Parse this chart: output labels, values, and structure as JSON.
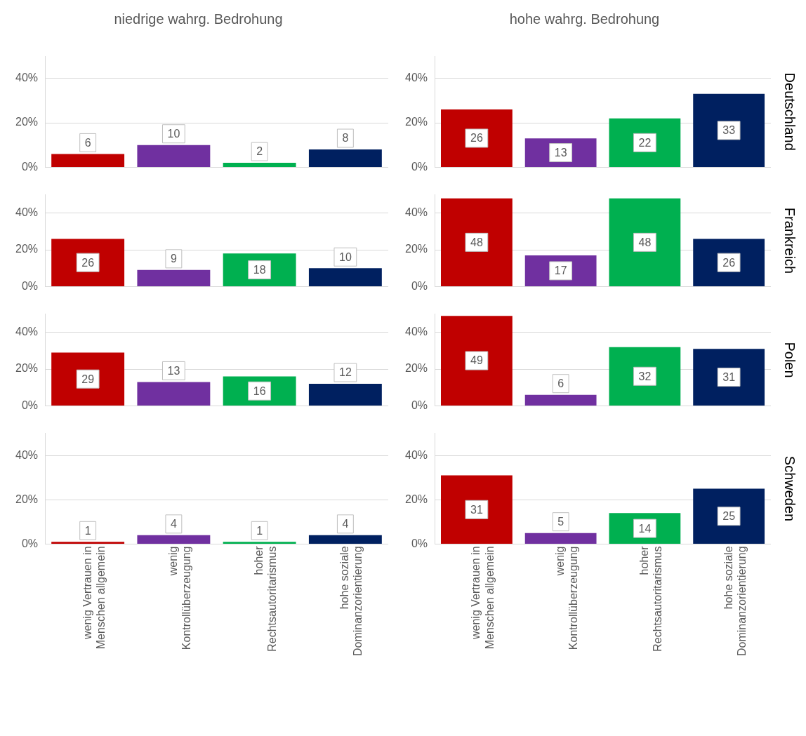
{
  "chart_data": [
    {
      "type": "bar",
      "title": "niedrige wahrg. Bedrohung",
      "categories": [
        null,
        null,
        null,
        null
      ],
      "values": [
        6,
        10,
        2,
        8
      ],
      "colors": [
        "#c00000",
        "#7030a0",
        "#00b050",
        "#002060"
      ],
      "ylim": [
        0,
        50
      ],
      "yticks": [
        {
          "value": 0,
          "label": "0%"
        },
        {
          "value": 20,
          "label": "20%"
        },
        {
          "value": 40,
          "label": "40%"
        }
      ],
      "grid": "y",
      "data_labels": true,
      "tick_labels": "y"
    },
    {
      "type": "bar",
      "title": "hohe wahrg. Bedrohung",
      "annotations": [
        "Deutschland"
      ],
      "categories": [
        null,
        null,
        null,
        null
      ],
      "values": [
        26,
        13,
        22,
        33
      ],
      "colors": [
        "#c00000",
        "#7030a0",
        "#00b050",
        "#002060"
      ],
      "ylim": [
        0,
        50
      ],
      "yticks": [
        {
          "value": 0,
          "label": "0%"
        },
        {
          "value": 20,
          "label": "20%"
        },
        {
          "value": 40,
          "label": "40%"
        }
      ],
      "grid": "y",
      "data_labels": true,
      "tick_labels": "y"
    },
    {
      "type": "bar",
      "categories": [
        null,
        null,
        null,
        null
      ],
      "values": [
        26,
        9,
        18,
        10
      ],
      "colors": [
        "#c00000",
        "#7030a0",
        "#00b050",
        "#002060"
      ],
      "ylim": [
        0,
        50
      ],
      "yticks": [
        {
          "value": 0,
          "label": "0%"
        },
        {
          "value": 20,
          "label": "20%"
        },
        {
          "value": 40,
          "label": "40%"
        }
      ],
      "grid": "y",
      "data_labels": true,
      "tick_labels": "y"
    },
    {
      "type": "bar",
      "annotations": [
        "Frankreich"
      ],
      "categories": [
        null,
        null,
        null,
        null
      ],
      "values": [
        48,
        17,
        48,
        26
      ],
      "colors": [
        "#c00000",
        "#7030a0",
        "#00b050",
        "#002060"
      ],
      "ylim": [
        0,
        50
      ],
      "yticks": [
        {
          "value": 0,
          "label": "0%"
        },
        {
          "value": 20,
          "label": "20%"
        },
        {
          "value": 40,
          "label": "40%"
        }
      ],
      "grid": "y",
      "data_labels": true,
      "tick_labels": "y"
    },
    {
      "type": "bar",
      "categories": [
        null,
        null,
        null,
        null
      ],
      "values": [
        29,
        13,
        16,
        12
      ],
      "colors": [
        "#c00000",
        "#7030a0",
        "#00b050",
        "#002060"
      ],
      "ylim": [
        0,
        50
      ],
      "yticks": [
        {
          "value": 0,
          "label": "0%"
        },
        {
          "value": 20,
          "label": "20%"
        },
        {
          "value": 40,
          "label": "40%"
        }
      ],
      "grid": "y",
      "data_labels": true,
      "tick_labels": "y"
    },
    {
      "type": "bar",
      "annotations": [
        "Polen"
      ],
      "categories": [
        null,
        null,
        null,
        null
      ],
      "values": [
        49,
        6,
        32,
        31
      ],
      "colors": [
        "#c00000",
        "#7030a0",
        "#00b050",
        "#002060"
      ],
      "ylim": [
        0,
        50
      ],
      "yticks": [
        {
          "value": 0,
          "label": "0%"
        },
        {
          "value": 20,
          "label": "20%"
        },
        {
          "value": 40,
          "label": "40%"
        }
      ],
      "grid": "y",
      "data_labels": true,
      "tick_labels": "y"
    },
    {
      "type": "bar",
      "categories": [
        "wenig Vertrauen in Menschen allgemein",
        "wenig Kontrollüberzeugung",
        "hoher Rechtsautoritarismus",
        "hohe soziale Dominanzorientierung"
      ],
      "values": [
        1,
        4,
        1,
        4
      ],
      "colors": [
        "#c00000",
        "#7030a0",
        "#00b050",
        "#002060"
      ],
      "ylim": [
        0,
        50
      ],
      "yticks": [
        {
          "value": 0,
          "label": "0%"
        },
        {
          "value": 20,
          "label": "20%"
        },
        {
          "value": 40,
          "label": "40%"
        }
      ],
      "grid": "y",
      "data_labels": true
    },
    {
      "type": "bar",
      "annotations": [
        "Schweden"
      ],
      "categories": [
        "wenig Vertrauen in Menschen allgemein",
        "wenig Kontrollüberzeugung",
        "hoher Rechtsautoritarismus",
        "hohe soziale Dominanzorientierung"
      ],
      "values": [
        31,
        5,
        14,
        25
      ],
      "colors": [
        "#c00000",
        "#7030a0",
        "#00b050",
        "#002060"
      ],
      "ylim": [
        0,
        50
      ],
      "yticks": [
        {
          "value": 0,
          "label": "0%"
        },
        {
          "value": 20,
          "label": "20%"
        },
        {
          "value": 40,
          "label": "40%"
        }
      ],
      "grid": "y",
      "data_labels": true
    }
  ]
}
